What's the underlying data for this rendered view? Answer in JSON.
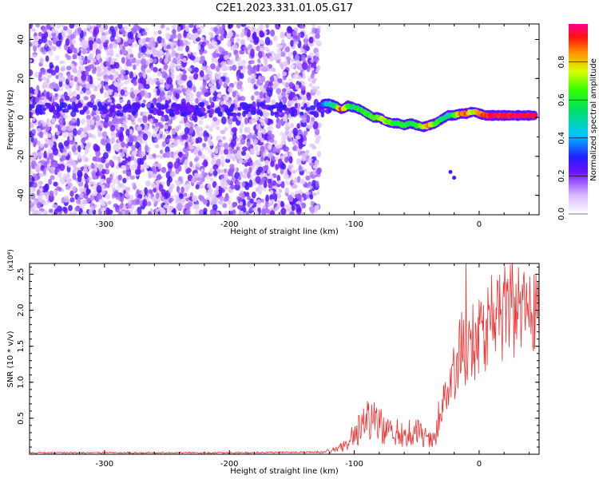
{
  "title": "C2E1.2023.331.01.05.G17",
  "chart_data": [
    {
      "type": "heatmap",
      "xlabel": "Height of straight line (km)",
      "ylabel": "Frequency (Hz)",
      "xlim": [
        -360,
        48
      ],
      "ylim": [
        -50,
        48
      ],
      "xticks": [
        -300,
        -200,
        -100,
        0
      ],
      "xtick_labels": [
        "-300",
        "-200",
        "-100",
        "0"
      ],
      "yticks": [
        -40,
        -20,
        0,
        20,
        40
      ],
      "ytick_labels": [
        "-40",
        "-20",
        "0",
        "20",
        "40"
      ],
      "colorbar": {
        "label": "Normalized spectral amplitude",
        "range": [
          0,
          1
        ],
        "ticks": [
          0.0,
          0.2,
          0.4,
          0.6,
          0.8
        ],
        "tick_labels": [
          "0.0",
          "0.2",
          "0.4",
          "0.6",
          "0.8"
        ]
      },
      "noise_region_x": [
        -360,
        -128
      ],
      "signal_track": [
        {
          "x": -125,
          "y": 7,
          "amp": 0.3
        },
        {
          "x": -120,
          "y": 7,
          "amp": 0.45
        },
        {
          "x": -115,
          "y": 6,
          "amp": 0.55
        },
        {
          "x": -110,
          "y": 4,
          "amp": 0.9
        },
        {
          "x": -105,
          "y": 6,
          "amp": 0.6
        },
        {
          "x": -100,
          "y": 5,
          "amp": 0.55
        },
        {
          "x": -95,
          "y": 4,
          "amp": 0.6
        },
        {
          "x": -90,
          "y": 2,
          "amp": 0.6
        },
        {
          "x": -85,
          "y": 0,
          "amp": 0.65
        },
        {
          "x": -80,
          "y": 0,
          "amp": 0.7
        },
        {
          "x": -75,
          "y": -2,
          "amp": 0.7
        },
        {
          "x": -70,
          "y": -3,
          "amp": 0.65
        },
        {
          "x": -65,
          "y": -3,
          "amp": 0.55
        },
        {
          "x": -60,
          "y": -4,
          "amp": 0.6
        },
        {
          "x": -55,
          "y": -3,
          "amp": 0.55
        },
        {
          "x": -50,
          "y": -4,
          "amp": 0.6
        },
        {
          "x": -45,
          "y": -5,
          "amp": 0.75
        },
        {
          "x": -40,
          "y": -4,
          "amp": 0.85
        },
        {
          "x": -35,
          "y": -3,
          "amp": 0.65
        },
        {
          "x": -30,
          "y": -1,
          "amp": 0.55
        },
        {
          "x": -25,
          "y": 1,
          "amp": 0.5
        },
        {
          "x": -20,
          "y": 1,
          "amp": 0.6
        },
        {
          "x": -15,
          "y": 2,
          "amp": 0.85
        },
        {
          "x": -10,
          "y": 2,
          "amp": 0.9
        },
        {
          "x": -5,
          "y": 3,
          "amp": 0.7
        },
        {
          "x": 0,
          "y": 2,
          "amp": 0.85
        },
        {
          "x": 5,
          "y": 1,
          "amp": 0.9
        },
        {
          "x": 10,
          "y": 1,
          "amp": 0.95
        },
        {
          "x": 15,
          "y": 1,
          "amp": 0.95
        },
        {
          "x": 20,
          "y": 1,
          "amp": 0.95
        },
        {
          "x": 25,
          "y": 1,
          "amp": 0.95
        },
        {
          "x": 30,
          "y": 1,
          "amp": 0.95
        },
        {
          "x": 35,
          "y": 1,
          "amp": 0.95
        },
        {
          "x": 40,
          "y": 1,
          "amp": 0.95
        },
        {
          "x": 45,
          "y": 1,
          "amp": 0.95
        }
      ],
      "isolated_points": [
        {
          "x": -20,
          "y": -31
        },
        {
          "x": -23,
          "y": -28
        }
      ]
    },
    {
      "type": "line",
      "xlabel": "Height of straight line (km)",
      "ylabel": "SNR (10 * v/v)",
      "yscale_label": "(x10⁴)",
      "xlim": [
        -360,
        48
      ],
      "ylim": [
        0,
        2.65
      ],
      "xticks": [
        -300,
        -200,
        -100,
        0
      ],
      "xtick_labels": [
        "-300",
        "-200",
        "-100",
        "0"
      ],
      "yticks": [
        0.5,
        1.0,
        1.5,
        2.0,
        2.5
      ],
      "ytick_labels": [
        "0.5",
        "1.0",
        "1.5",
        "2.0",
        "2.5"
      ],
      "line_color": "#ee3333",
      "series": [
        {
          "x": [
            -360,
            -300,
            -200,
            -130,
            -115,
            -105,
            -100,
            -95,
            -90,
            -85,
            -80,
            -75,
            -70,
            -65,
            -60,
            -55,
            -50,
            -45,
            -40,
            -35,
            -32,
            -28,
            -25,
            -22,
            -20,
            -18,
            -15,
            -12,
            -10,
            -8,
            -5,
            -2,
            0,
            5,
            10,
            15,
            20,
            25,
            30,
            35,
            40,
            45
          ],
          "y": [
            0.02,
            0.02,
            0.02,
            0.03,
            0.06,
            0.15,
            0.3,
            0.35,
            0.45,
            0.5,
            0.4,
            0.35,
            0.3,
            0.3,
            0.25,
            0.3,
            0.3,
            0.25,
            0.2,
            0.2,
            0.5,
            0.8,
            0.9,
            1.1,
            1.1,
            1.2,
            1.45,
            1.5,
            1.25,
            1.45,
            1.55,
            1.55,
            1.65,
            1.75,
            1.85,
            1.9,
            1.95,
            2.0,
            2.05,
            2.08,
            2.1,
            2.1
          ]
        }
      ]
    }
  ]
}
